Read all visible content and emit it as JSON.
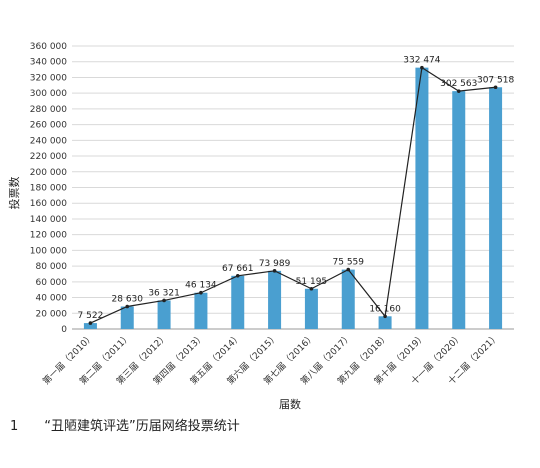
{
  "caption": {
    "number": "1",
    "text": "“丑陋建筑评选”历届网络投票统计"
  },
  "chart_data": {
    "type": "bar",
    "xlabel": "届数",
    "ylabel": "投票数",
    "ylim": [
      0,
      360000
    ],
    "ytick_step": 20000,
    "ytick_labels": [
      "0",
      "20 000",
      "40 000",
      "60 000",
      "80 000",
      "100 000",
      "120 000",
      "140 000",
      "160 000",
      "180 000",
      "200 000",
      "220 000",
      "240 000",
      "260 000",
      "280 000",
      "300 000",
      "320 000",
      "340 000",
      "360 000"
    ],
    "grid": true,
    "categories": [
      "第一届（2010）",
      "第二届（2011）",
      "第三届（2012）",
      "第四届（2013）",
      "第五届（2014）",
      "第六届（2015）",
      "第七届（2016）",
      "第八届（2017）",
      "第九届（2018）",
      "第十届（2019）",
      "十一届（2020）",
      "十二届（2021）"
    ],
    "values": [
      7522,
      28630,
      36321,
      46134,
      67661,
      73989,
      51195,
      75559,
      16160,
      332474,
      302563,
      307518
    ],
    "value_labels": [
      "7 522",
      "28 630",
      "36 321",
      "46 134",
      "67 661",
      "73 989",
      "51 195",
      "75 559",
      "16 160",
      "332 474",
      "302 563",
      "307 518"
    ],
    "bar_color": "#4a9fd0",
    "line_color": "#222222",
    "overlay_line": true
  }
}
